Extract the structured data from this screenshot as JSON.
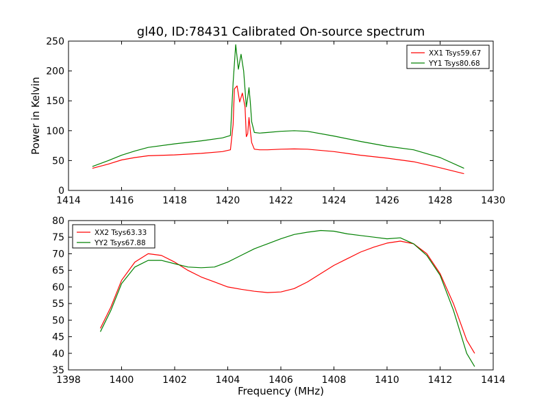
{
  "title": "gl40, ID:78431 Calibrated On-source spectrum",
  "chart_data": [
    {
      "type": "line",
      "ylabel": "Power in Kelvin",
      "xlabel": "",
      "xlim": [
        1414,
        1430
      ],
      "ylim": [
        0,
        250
      ],
      "xticks": [
        "1414",
        "1416",
        "1418",
        "1420",
        "1422",
        "1424",
        "1426",
        "1428",
        "1430"
      ],
      "yticks": [
        "0",
        "50",
        "100",
        "150",
        "200",
        "250"
      ],
      "grid": false,
      "legend_position": "top-right",
      "series": [
        {
          "name": "XX1 Tsys59.67",
          "color": "#ff0000",
          "x": [
            1414.9,
            1415.5,
            1416,
            1416.5,
            1417,
            1418,
            1419,
            1419.8,
            1420.1,
            1420.2,
            1420.25,
            1420.35,
            1420.45,
            1420.55,
            1420.65,
            1420.7,
            1420.75,
            1420.8,
            1420.85,
            1420.9,
            1421.0,
            1421.2,
            1421.5,
            1422,
            1422.5,
            1423,
            1424,
            1425,
            1426,
            1427,
            1428,
            1428.9
          ],
          "y": [
            37,
            44,
            51,
            55,
            58,
            59.5,
            62,
            65,
            68,
            110,
            170,
            175,
            148,
            163,
            140,
            90,
            95,
            122,
            100,
            80,
            69,
            68,
            68,
            69,
            69.5,
            69,
            65,
            59,
            54,
            48,
            38,
            28
          ]
        },
        {
          "name": "YY1 Tsys80.68",
          "color": "#008000",
          "x": [
            1414.9,
            1415.5,
            1416,
            1416.5,
            1417,
            1418,
            1419,
            1419.8,
            1420.1,
            1420.2,
            1420.3,
            1420.4,
            1420.5,
            1420.6,
            1420.7,
            1420.75,
            1420.8,
            1420.85,
            1420.9,
            1421.0,
            1421.2,
            1421.5,
            1422,
            1422.5,
            1423,
            1424,
            1425,
            1426,
            1427,
            1428,
            1428.9
          ],
          "y": [
            40,
            50,
            59,
            66,
            72,
            78,
            83,
            88,
            92,
            180,
            244,
            203,
            228,
            200,
            140,
            155,
            172,
            148,
            115,
            97,
            96,
            97,
            99,
            100,
            99,
            91,
            82,
            74,
            68,
            55,
            37
          ]
        }
      ]
    },
    {
      "type": "line",
      "ylabel": "",
      "xlabel": "Frequency (MHz)",
      "xlim": [
        1398,
        1414
      ],
      "ylim": [
        35,
        80
      ],
      "xticks": [
        "1398",
        "1400",
        "1402",
        "1404",
        "1406",
        "1408",
        "1410",
        "1412",
        "1414"
      ],
      "yticks": [
        "35",
        "40",
        "45",
        "50",
        "55",
        "60",
        "65",
        "70",
        "75",
        "80"
      ],
      "grid": false,
      "legend_position": "top-left",
      "series": [
        {
          "name": "XX2 Tsys63.33",
          "color": "#ff0000",
          "x": [
            1399.2,
            1399.6,
            1400,
            1400.5,
            1401,
            1401.5,
            1402,
            1402.5,
            1403,
            1403.5,
            1404,
            1404.5,
            1405,
            1405.5,
            1406,
            1406.5,
            1407,
            1407.5,
            1408,
            1408.5,
            1409,
            1409.5,
            1410,
            1410.5,
            1411,
            1411.5,
            1412,
            1412.5,
            1413,
            1413.3
          ],
          "y": [
            47.5,
            54,
            62,
            67.5,
            70,
            69.5,
            67.5,
            65,
            63,
            61.5,
            60,
            59.3,
            58.7,
            58.3,
            58.5,
            59.5,
            61.5,
            64,
            66.5,
            68.5,
            70.5,
            72,
            73.2,
            73.8,
            73,
            70,
            64,
            55,
            44,
            40
          ]
        },
        {
          "name": "YY2 Tsys67.88",
          "color": "#008000",
          "x": [
            1399.2,
            1399.6,
            1400,
            1400.5,
            1401,
            1401.5,
            1402,
            1402.5,
            1403,
            1403.5,
            1404,
            1404.5,
            1405,
            1405.5,
            1406,
            1406.5,
            1407,
            1407.5,
            1408,
            1408.5,
            1409,
            1409.5,
            1410,
            1410.5,
            1411,
            1411.5,
            1412,
            1412.5,
            1413,
            1413.3
          ],
          "y": [
            46.5,
            53,
            61,
            66,
            68,
            68,
            67,
            66,
            65.8,
            66,
            67.5,
            69.5,
            71.5,
            73,
            74.5,
            75.8,
            76.5,
            77,
            76.8,
            76,
            75.5,
            75,
            74.5,
            74.8,
            73,
            69.5,
            63.5,
            53,
            40,
            36
          ]
        }
      ]
    }
  ]
}
